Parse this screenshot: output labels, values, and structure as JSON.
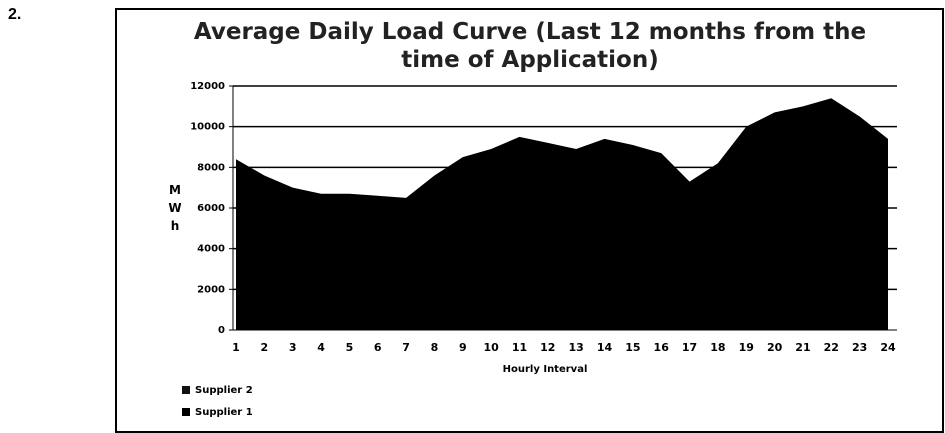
{
  "item_number": "2.",
  "chart_data": {
    "type": "area",
    "title": "Average Daily Load Curve (Last 12 months from the time of Application)",
    "x_label": "Hourly Interval",
    "y_label": "MWh",
    "categories": [
      "1",
      "2",
      "3",
      "4",
      "5",
      "6",
      "7",
      "8",
      "9",
      "10",
      "11",
      "12",
      "13",
      "14",
      "15",
      "16",
      "17",
      "18",
      "19",
      "20",
      "21",
      "22",
      "23",
      "24"
    ],
    "series": [
      {
        "name": "Supplier 2",
        "color": "#111111",
        "values": [
          null,
          null,
          null,
          null,
          null,
          null,
          null,
          null,
          null,
          null,
          null,
          null,
          null,
          null,
          null,
          null,
          null,
          null,
          null,
          null,
          null,
          null,
          null,
          null
        ]
      },
      {
        "name": "Supplier 1",
        "color": "#000000",
        "values": [
          8400,
          7600,
          7000,
          6700,
          6700,
          6600,
          6500,
          7600,
          8500,
          8900,
          9500,
          9200,
          8900,
          9400,
          9100,
          8700,
          7300,
          8200,
          10000,
          10700,
          11000,
          11400,
          10500,
          9400
        ]
      }
    ],
    "ylim": [
      0,
      12000
    ],
    "yticks": [
      0,
      2000,
      4000,
      6000,
      8000,
      10000,
      12000
    ],
    "grid": true,
    "legend": "bottom-left"
  }
}
